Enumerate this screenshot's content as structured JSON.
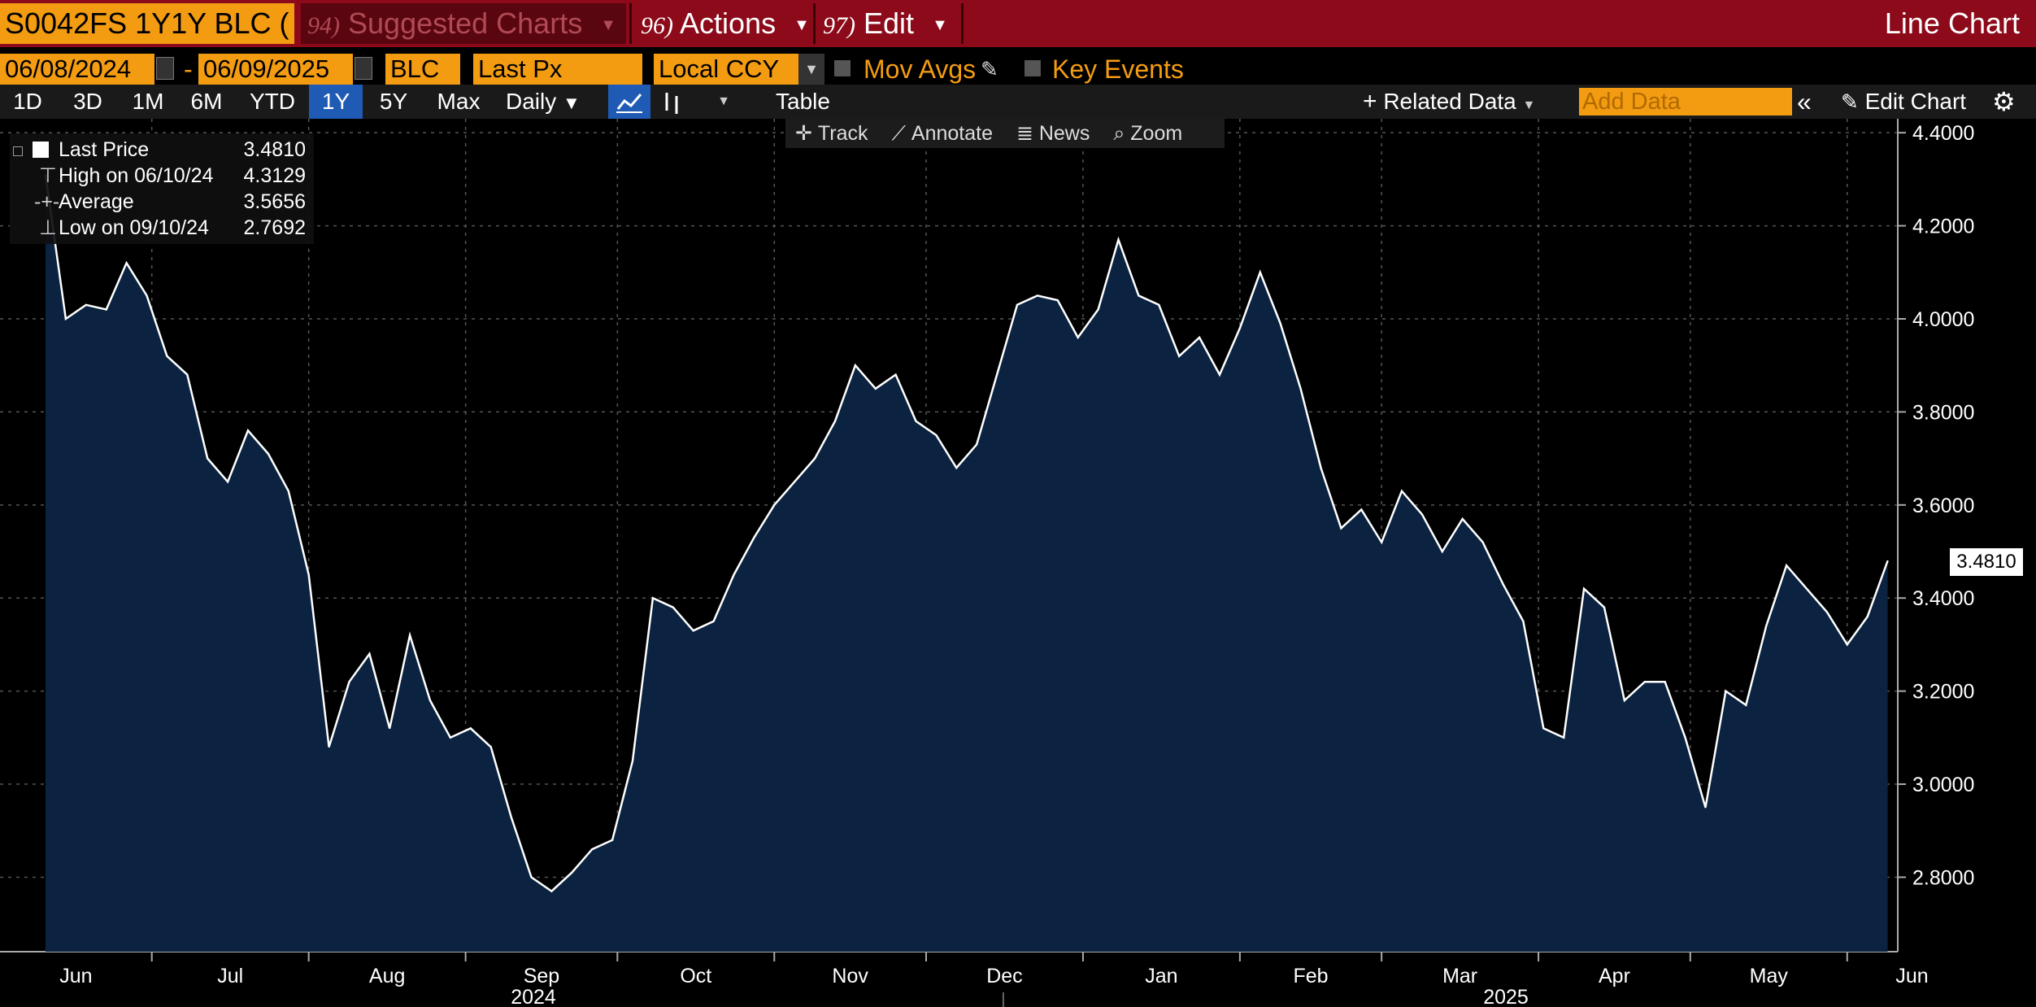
{
  "header": {
    "ticker": "S0042FS 1Y1Y BLC (",
    "suggested": {
      "num": "94)",
      "label": "Suggested Charts"
    },
    "actions": {
      "num": "96)",
      "label": "Actions"
    },
    "edit": {
      "num": "97)",
      "label": "Edit"
    },
    "chart_type": "Line Chart"
  },
  "controls": {
    "start_date": "06/08/2024",
    "dash": "-",
    "end_date": "06/09/2025",
    "source": "BLC",
    "field": "Last Px",
    "currency": "Local CCY",
    "mov_avgs": "Mov Avgs",
    "key_events": "Key Events"
  },
  "periods": [
    "1D",
    "3D",
    "1M",
    "6M",
    "YTD",
    "1Y",
    "5Y",
    "Max"
  ],
  "active_period": "1Y",
  "toolbar": {
    "frequency": "Daily",
    "table": "Table",
    "related_data": "Related Data",
    "add_data_placeholder": "Add Data",
    "edit_chart": "Edit Chart"
  },
  "chart_tools": {
    "track": "Track",
    "annotate": "Annotate",
    "news": "News",
    "zoom": "Zoom"
  },
  "legend": {
    "last_price": {
      "label": "Last Price",
      "value": "3.4810"
    },
    "high": {
      "label": "High on 06/10/24",
      "value": "4.3129"
    },
    "average": {
      "label": "Average",
      "value": "3.5656"
    },
    "low": {
      "label": "Low on 09/10/24",
      "value": "2.7692"
    }
  },
  "colors": {
    "accent": "#f39c12",
    "header_bg": "#8c0a1a",
    "area_fill": "#0b2340",
    "line": "#ffffff",
    "active": "#1f5bb5"
  },
  "chart_data": {
    "type": "area",
    "title": "",
    "xlabel": "",
    "ylabel": "",
    "ylim": [
      2.64,
      4.43
    ],
    "y_ticks": [
      "4.4000",
      "4.2000",
      "4.0000",
      "3.8000",
      "3.6000",
      "3.4000",
      "3.2000",
      "3.0000",
      "2.8000"
    ],
    "x_months": [
      "Jun",
      "Jul",
      "Aug",
      "Sep",
      "Oct",
      "Nov",
      "Dec",
      "Jan",
      "Feb",
      "Mar",
      "Apr",
      "May",
      "Jun"
    ],
    "x_years": [
      "2024",
      "2025"
    ],
    "last_value_label": "3.4810",
    "grid": true,
    "series": [
      {
        "x": [
          "2024-06-10",
          "2024-06-14",
          "2024-06-18",
          "2024-06-22",
          "2024-06-26",
          "2024-06-30",
          "2024-07-04",
          "2024-07-08",
          "2024-07-12",
          "2024-07-16",
          "2024-07-20",
          "2024-07-24",
          "2024-07-28",
          "2024-08-01",
          "2024-08-05",
          "2024-08-09",
          "2024-08-13",
          "2024-08-17",
          "2024-08-21",
          "2024-08-25",
          "2024-08-29",
          "2024-09-02",
          "2024-09-06",
          "2024-09-10",
          "2024-09-14",
          "2024-09-18",
          "2024-09-22",
          "2024-09-26",
          "2024-09-30",
          "2024-10-04",
          "2024-10-08",
          "2024-10-12",
          "2024-10-16",
          "2024-10-20",
          "2024-10-24",
          "2024-10-28",
          "2024-11-01",
          "2024-11-05",
          "2024-11-09",
          "2024-11-13",
          "2024-11-17",
          "2024-11-21",
          "2024-11-25",
          "2024-11-29",
          "2024-12-03",
          "2024-12-07",
          "2024-12-11",
          "2024-12-15",
          "2024-12-19",
          "2024-12-23",
          "2024-12-27",
          "2024-12-31",
          "2025-01-04",
          "2025-01-08",
          "2025-01-12",
          "2025-01-16",
          "2025-01-20",
          "2025-01-24",
          "2025-01-28",
          "2025-02-01",
          "2025-02-05",
          "2025-02-09",
          "2025-02-13",
          "2025-02-17",
          "2025-02-21",
          "2025-02-25",
          "2025-03-01",
          "2025-03-05",
          "2025-03-09",
          "2025-03-13",
          "2025-03-17",
          "2025-03-21",
          "2025-03-25",
          "2025-03-29",
          "2025-04-02",
          "2025-04-06",
          "2025-04-10",
          "2025-04-14",
          "2025-04-18",
          "2025-04-22",
          "2025-04-26",
          "2025-04-30",
          "2025-05-04",
          "2025-05-08",
          "2025-05-12",
          "2025-05-16",
          "2025-05-20",
          "2025-05-24",
          "2025-05-28",
          "2025-06-01",
          "2025-06-05",
          "2025-06-09"
        ],
        "y": [
          4.31,
          4.0,
          4.03,
          4.02,
          4.12,
          4.05,
          3.92,
          3.88,
          3.7,
          3.65,
          3.76,
          3.71,
          3.63,
          3.45,
          3.08,
          3.22,
          3.28,
          3.12,
          3.32,
          3.18,
          3.1,
          3.12,
          3.08,
          2.93,
          2.8,
          2.77,
          2.81,
          2.86,
          2.88,
          3.05,
          3.4,
          3.38,
          3.33,
          3.35,
          3.45,
          3.53,
          3.6,
          3.65,
          3.7,
          3.78,
          3.9,
          3.85,
          3.88,
          3.78,
          3.75,
          3.68,
          3.73,
          3.88,
          4.03,
          4.05,
          4.04,
          3.96,
          4.02,
          4.17,
          4.05,
          4.03,
          3.92,
          3.96,
          3.88,
          3.98,
          4.1,
          3.99,
          3.85,
          3.68,
          3.55,
          3.59,
          3.52,
          3.63,
          3.58,
          3.5,
          3.57,
          3.52,
          3.43,
          3.35,
          3.12,
          3.1,
          3.42,
          3.38,
          3.18,
          3.22,
          3.22,
          3.1,
          2.95,
          3.2,
          3.17,
          3.34,
          3.47,
          3.42,
          3.37,
          3.3,
          3.36,
          3.48
        ]
      }
    ]
  }
}
